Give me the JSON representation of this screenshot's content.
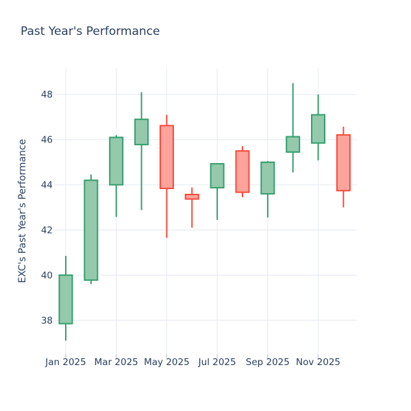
{
  "figure": {
    "title": "Past Year's Performance",
    "y_axis_title": "EXC's Past Year's Performance"
  },
  "colors": {
    "background": "#ffffff",
    "text": "#2a3f5f",
    "grid": "#e9edf5",
    "tick": "#c5ccd8",
    "increasing_line": "#359e6d",
    "increasing_fill": "#94c9ac",
    "decreasing_line": "#f94839",
    "decreasing_fill": "#fca49c"
  },
  "chart_data": {
    "type": "candlestick",
    "title": "Past Year's Performance",
    "xlabel": "",
    "ylabel": "EXC's Past Year's Performance",
    "categories": [
      "Jan 2025",
      "Feb 2025",
      "Mar 2025",
      "Apr 2025",
      "May 2025",
      "Jun 2025",
      "Jul 2025",
      "Aug 2025",
      "Sep 2025",
      "Oct 2025",
      "Nov 2025",
      "Dec 2025"
    ],
    "series": [
      {
        "name": "EXC",
        "open": [
          37.85,
          39.78,
          44.0,
          45.78,
          46.62,
          43.57,
          43.87,
          45.5,
          43.6,
          45.45,
          45.85,
          46.21
        ],
        "high": [
          40.85,
          44.45,
          46.2,
          48.1,
          47.1,
          43.88,
          44.95,
          45.71,
          45.05,
          48.5,
          48.0,
          46.57
        ],
        "low": [
          37.1,
          39.6,
          42.58,
          42.88,
          41.65,
          42.1,
          42.45,
          43.45,
          42.55,
          44.55,
          45.08,
          43.0
        ],
        "close": [
          40.0,
          44.2,
          46.1,
          46.9,
          43.84,
          43.37,
          44.93,
          43.67,
          45.0,
          46.13,
          47.1,
          43.74
        ]
      }
    ],
    "ylim": [
      36.5,
      49.15
    ],
    "yticks": [
      38,
      40,
      42,
      44,
      46,
      48
    ],
    "xtick_labels": [
      "Jan 2025",
      "Mar 2025",
      "May 2025",
      "Jul 2025",
      "Sep 2025",
      "Nov 2025"
    ],
    "xtick_indices": [
      0,
      2,
      4,
      6,
      8,
      10
    ],
    "grid": true,
    "legend": false,
    "increasing_color": "#359e6d",
    "decreasing_color": "#f94839"
  }
}
